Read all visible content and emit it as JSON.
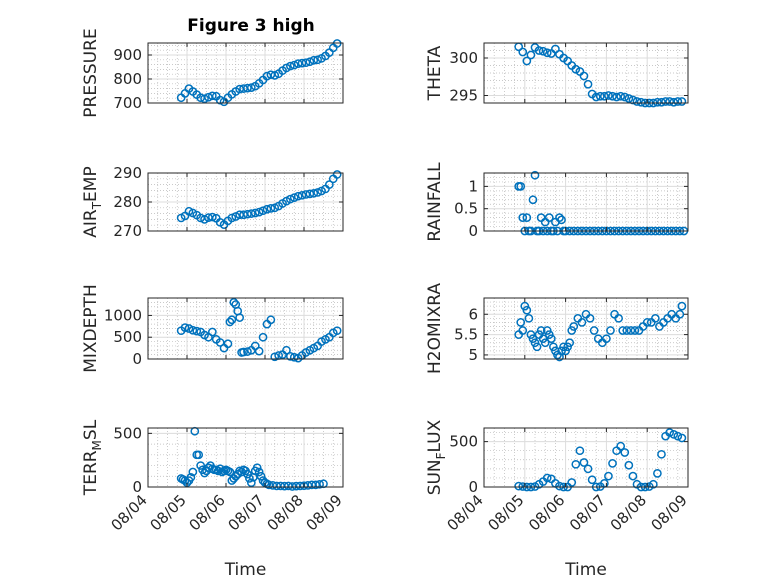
{
  "figure_title": "Figure 3 high",
  "colors": {
    "marker": "#0072BD",
    "axis": "#262626",
    "grid": "#dcdcdc",
    "minor_grid": "#b8b8b8"
  },
  "chart_data": [
    {
      "type": "scatter",
      "title": "Figure 3 high",
      "ylabel_parts": [
        {
          "t": "PRESSURE"
        }
      ],
      "ylim": [
        700,
        950
      ],
      "yticks": [
        700,
        800,
        900
      ],
      "xticks": [
        "08/04",
        "08/05",
        "08/06",
        "08/07",
        "08/08",
        "08/09"
      ],
      "xlabel": "",
      "grid": true,
      "x": [
        0.85,
        0.95,
        1.05,
        1.15,
        1.25,
        1.35,
        1.45,
        1.55,
        1.65,
        1.75,
        1.85,
        1.95,
        2.05,
        2.15,
        2.25,
        2.35,
        2.45,
        2.55,
        2.65,
        2.75,
        2.85,
        2.95,
        3.05,
        3.15,
        3.25,
        3.35,
        3.45,
        3.55,
        3.65,
        3.75,
        3.85,
        3.95,
        4.05,
        4.15,
        4.25,
        4.35,
        4.45,
        4.55,
        4.65,
        4.75,
        4.85
      ],
      "y": [
        722,
        740,
        760,
        748,
        735,
        722,
        718,
        724,
        730,
        728,
        712,
        705,
        722,
        736,
        748,
        758,
        760,
        762,
        764,
        770,
        782,
        796,
        812,
        818,
        815,
        822,
        835,
        846,
        854,
        858,
        864,
        866,
        868,
        872,
        878,
        880,
        886,
        896,
        910,
        930,
        948
      ]
    },
    {
      "type": "scatter",
      "ylabel_parts": [
        {
          "t": "THETA"
        }
      ],
      "ylim": [
        294,
        302
      ],
      "yticks": [
        295,
        300
      ],
      "xticks": [
        "08/04",
        "08/05",
        "08/06",
        "08/07",
        "08/08",
        "08/09"
      ],
      "xlabel": "",
      "grid": true,
      "x": [
        0.85,
        0.95,
        1.05,
        1.15,
        1.25,
        1.35,
        1.45,
        1.55,
        1.65,
        1.75,
        1.85,
        1.95,
        2.05,
        2.15,
        2.25,
        2.35,
        2.45,
        2.55,
        2.65,
        2.75,
        2.85,
        2.95,
        3.05,
        3.15,
        3.25,
        3.35,
        3.45,
        3.55,
        3.65,
        3.75,
        3.85,
        3.95,
        4.05,
        4.15,
        4.25,
        4.35,
        4.45,
        4.55,
        4.65,
        4.75,
        4.85
      ],
      "y": [
        301.5,
        300.8,
        299.6,
        300.4,
        301.4,
        301.0,
        300.9,
        300.7,
        300.6,
        301.2,
        300.5,
        300.0,
        299.6,
        299.0,
        298.5,
        298.2,
        297.6,
        296.5,
        295.2,
        294.8,
        294.9,
        294.9,
        295.0,
        294.9,
        294.8,
        294.9,
        294.8,
        294.6,
        294.4,
        294.2,
        294.1,
        294.0,
        294.0,
        294.0,
        294.1,
        294.1,
        294.2,
        294.2,
        294.1,
        294.2,
        294.2
      ]
    },
    {
      "type": "scatter",
      "ylabel_parts": [
        {
          "t": "AIR"
        },
        {
          "t": "T",
          "sub": true
        },
        {
          "t": "EMP"
        }
      ],
      "ylim": [
        270,
        290
      ],
      "yticks": [
        270,
        280,
        290
      ],
      "xticks": [
        "08/04",
        "08/05",
        "08/06",
        "08/07",
        "08/08",
        "08/09"
      ],
      "xlabel": "",
      "grid": true,
      "x": [
        0.85,
        0.95,
        1.05,
        1.15,
        1.25,
        1.35,
        1.45,
        1.55,
        1.65,
        1.75,
        1.85,
        1.95,
        2.05,
        2.15,
        2.25,
        2.35,
        2.45,
        2.55,
        2.65,
        2.75,
        2.85,
        2.95,
        3.05,
        3.15,
        3.25,
        3.35,
        3.45,
        3.55,
        3.65,
        3.75,
        3.85,
        3.95,
        4.05,
        4.15,
        4.25,
        4.35,
        4.45,
        4.55,
        4.65,
        4.75,
        4.85
      ],
      "y": [
        274.5,
        275.2,
        276.8,
        276.2,
        275.5,
        274.5,
        274.0,
        274.6,
        274.8,
        274.4,
        273.0,
        272.2,
        273.5,
        274.5,
        275.0,
        275.6,
        275.6,
        275.8,
        276.0,
        276.2,
        276.5,
        277.0,
        277.5,
        277.8,
        278.0,
        278.6,
        279.5,
        280.3,
        281.0,
        281.5,
        282.0,
        282.3,
        282.6,
        282.8,
        283.0,
        283.3,
        283.8,
        284.5,
        286.0,
        288.0,
        289.5
      ]
    },
    {
      "type": "scatter",
      "ylabel_parts": [
        {
          "t": "RAINFALL"
        }
      ],
      "ylim": [
        0,
        1.3
      ],
      "yticks": [
        0,
        0.5,
        1
      ],
      "xticks": [
        "08/04",
        "08/05",
        "08/06",
        "08/07",
        "08/08",
        "08/09"
      ],
      "xlabel": "",
      "grid": true,
      "x": [
        0.85,
        0.9,
        0.95,
        1.0,
        1.05,
        1.1,
        1.15,
        1.2,
        1.25,
        1.3,
        1.35,
        1.4,
        1.45,
        1.5,
        1.55,
        1.6,
        1.65,
        1.7,
        1.75,
        1.8,
        1.85,
        1.9,
        1.95,
        2.0,
        2.1,
        2.2,
        2.3,
        2.4,
        2.5,
        2.6,
        2.7,
        2.8,
        2.9,
        3.0,
        3.1,
        3.2,
        3.3,
        3.4,
        3.5,
        3.6,
        3.7,
        3.8,
        3.9,
        4.0,
        4.1,
        4.2,
        4.3,
        4.4,
        4.5,
        4.6,
        4.7,
        4.8,
        4.9
      ],
      "y": [
        1.0,
        1.0,
        0.3,
        0.0,
        0.3,
        0.0,
        0.0,
        0.7,
        1.25,
        0.0,
        0.0,
        0.3,
        0.0,
        0.2,
        0.0,
        0.3,
        0.0,
        0.0,
        0.2,
        0.0,
        0.3,
        0.25,
        0.0,
        0.0,
        0.0,
        0.0,
        0.0,
        0.0,
        0.0,
        0.0,
        0.0,
        0.0,
        0.0,
        0.0,
        0.0,
        0.0,
        0.0,
        0.0,
        0.0,
        0.0,
        0.0,
        0.0,
        0.0,
        0.0,
        0.0,
        0.0,
        0.0,
        0.0,
        0.0,
        0.0,
        0.0,
        0.0,
        0.0
      ]
    },
    {
      "type": "scatter",
      "ylabel_parts": [
        {
          "t": "MIXDEPTH"
        }
      ],
      "ylim": [
        0,
        1400
      ],
      "yticks": [
        0,
        500,
        1000
      ],
      "xticks": [
        "08/04",
        "08/05",
        "08/06",
        "08/07",
        "08/08",
        "08/09"
      ],
      "xlabel": "",
      "grid": true,
      "x": [
        0.85,
        0.95,
        1.05,
        1.15,
        1.25,
        1.35,
        1.45,
        1.55,
        1.65,
        1.75,
        1.85,
        1.95,
        2.05,
        2.1,
        2.15,
        2.2,
        2.25,
        2.3,
        2.35,
        2.4,
        2.45,
        2.55,
        2.65,
        2.75,
        2.85,
        2.95,
        3.05,
        3.15,
        3.25,
        3.35,
        3.45,
        3.55,
        3.65,
        3.75,
        3.85,
        3.95,
        4.05,
        4.15,
        4.25,
        4.35,
        4.45,
        4.55,
        4.65,
        4.75,
        4.85
      ],
      "y": [
        650,
        720,
        700,
        660,
        640,
        620,
        550,
        500,
        620,
        450,
        380,
        250,
        350,
        850,
        900,
        1300,
        1250,
        1100,
        950,
        150,
        160,
        170,
        200,
        300,
        180,
        500,
        800,
        900,
        50,
        80,
        100,
        200,
        60,
        40,
        20,
        80,
        150,
        200,
        250,
        300,
        400,
        450,
        500,
        600,
        650
      ]
    },
    {
      "type": "scatter",
      "ylabel_parts": [
        {
          "t": "H2OMIXRA"
        }
      ],
      "ylim": [
        4.9,
        6.4
      ],
      "yticks": [
        5,
        5.5,
        6
      ],
      "xticks": [
        "08/04",
        "08/05",
        "08/06",
        "08/07",
        "08/08",
        "08/09"
      ],
      "xlabel": "",
      "grid": true,
      "x": [
        0.85,
        0.9,
        0.95,
        1.0,
        1.05,
        1.1,
        1.15,
        1.2,
        1.25,
        1.3,
        1.35,
        1.4,
        1.45,
        1.5,
        1.55,
        1.6,
        1.65,
        1.7,
        1.75,
        1.8,
        1.85,
        1.9,
        1.95,
        2.0,
        2.05,
        2.1,
        2.15,
        2.2,
        2.3,
        2.4,
        2.5,
        2.6,
        2.7,
        2.8,
        2.9,
        3.0,
        3.1,
        3.2,
        3.3,
        3.4,
        3.5,
        3.6,
        3.7,
        3.8,
        3.9,
        4.0,
        4.1,
        4.2,
        4.3,
        4.4,
        4.5,
        4.6,
        4.7,
        4.8,
        4.85
      ],
      "y": [
        5.5,
        5.8,
        5.6,
        6.2,
        6.1,
        5.9,
        5.5,
        5.4,
        5.3,
        5.2,
        5.5,
        5.6,
        5.4,
        5.3,
        5.6,
        5.5,
        5.4,
        5.2,
        5.1,
        5.0,
        4.95,
        5.1,
        5.2,
        5.1,
        5.2,
        5.3,
        5.6,
        5.7,
        5.9,
        5.8,
        6.0,
        5.9,
        5.6,
        5.4,
        5.3,
        5.4,
        5.6,
        6.0,
        5.9,
        5.6,
        5.6,
        5.6,
        5.6,
        5.6,
        5.7,
        5.8,
        5.8,
        5.9,
        5.7,
        5.8,
        5.9,
        6.0,
        5.9,
        6.0,
        6.2
      ]
    },
    {
      "type": "scatter",
      "ylabel_parts": [
        {
          "t": "TERR"
        },
        {
          "t": "M",
          "sub": true
        },
        {
          "t": "SL"
        }
      ],
      "ylim": [
        0,
        550
      ],
      "yticks": [
        0,
        500
      ],
      "xticks": [
        "08/04",
        "08/05",
        "08/06",
        "08/07",
        "08/08",
        "08/09"
      ],
      "xlabel": "Time",
      "grid": true,
      "x": [
        0.85,
        0.9,
        0.95,
        1.0,
        1.05,
        1.1,
        1.15,
        1.2,
        1.25,
        1.3,
        1.35,
        1.4,
        1.45,
        1.5,
        1.55,
        1.6,
        1.65,
        1.7,
        1.75,
        1.8,
        1.85,
        1.9,
        1.95,
        2.0,
        2.05,
        2.1,
        2.15,
        2.2,
        2.25,
        2.3,
        2.35,
        2.4,
        2.45,
        2.5,
        2.55,
        2.6,
        2.65,
        2.7,
        2.75,
        2.8,
        2.85,
        2.9,
        2.95,
        3.0,
        3.05,
        3.1,
        3.2,
        3.3,
        3.4,
        3.5,
        3.6,
        3.7,
        3.8,
        3.9,
        4.0,
        4.1,
        4.2,
        4.3,
        4.4,
        4.5
      ],
      "y": [
        80,
        70,
        60,
        40,
        60,
        90,
        140,
        520,
        300,
        300,
        200,
        160,
        130,
        150,
        180,
        200,
        170,
        160,
        160,
        150,
        170,
        140,
        150,
        160,
        150,
        140,
        60,
        80,
        100,
        120,
        150,
        140,
        160,
        150,
        120,
        80,
        40,
        90,
        150,
        180,
        140,
        100,
        60,
        40,
        30,
        20,
        15,
        10,
        10,
        8,
        10,
        5,
        8,
        10,
        12,
        15,
        20,
        20,
        25,
        30
      ]
    },
    {
      "type": "scatter",
      "ylabel_parts": [
        {
          "t": "SUN"
        },
        {
          "t": "F",
          "sub": true
        },
        {
          "t": "LUX"
        }
      ],
      "ylim": [
        0,
        650
      ],
      "yticks": [
        0,
        500
      ],
      "xticks": [
        "08/04",
        "08/05",
        "08/06",
        "08/07",
        "08/08",
        "08/09"
      ],
      "xlabel": "Time",
      "grid": true,
      "x": [
        0.85,
        0.95,
        1.05,
        1.15,
        1.25,
        1.35,
        1.45,
        1.55,
        1.65,
        1.75,
        1.85,
        1.95,
        2.05,
        2.15,
        2.25,
        2.35,
        2.45,
        2.55,
        2.65,
        2.75,
        2.85,
        2.95,
        3.05,
        3.15,
        3.25,
        3.35,
        3.45,
        3.55,
        3.65,
        3.75,
        3.85,
        3.95,
        4.05,
        4.15,
        4.25,
        4.35,
        4.45,
        4.55,
        4.65,
        4.75,
        4.85
      ],
      "y": [
        10,
        5,
        0,
        0,
        5,
        30,
        60,
        100,
        90,
        40,
        10,
        0,
        0,
        50,
        250,
        400,
        270,
        200,
        80,
        0,
        5,
        40,
        120,
        260,
        400,
        450,
        380,
        240,
        120,
        30,
        0,
        0,
        5,
        30,
        150,
        360,
        560,
        600,
        580,
        560,
        540
      ]
    }
  ]
}
